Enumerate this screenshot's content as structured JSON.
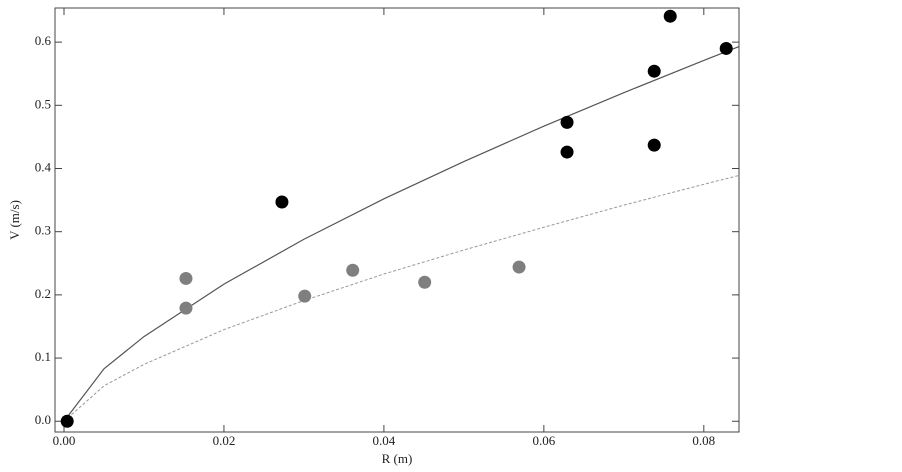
{
  "chart_data": {
    "type": "scatter",
    "xlabel": "R (m)",
    "ylabel": "V (m/s)",
    "xlim": [
      -0.001125,
      0.0844
    ],
    "ylim": [
      -0.017,
      0.654
    ],
    "xticks": [
      {
        "value": 0,
        "label": "0.00"
      },
      0.02,
      0.04,
      0.06,
      0.08
    ],
    "yticks": [
      {
        "value": 0,
        "label": "0.0"
      },
      0.1,
      0.2,
      0.3,
      0.4,
      0.5,
      0.6
    ],
    "series": [
      {
        "style": "marker",
        "color": "#000000",
        "x": [
          0.0004,
          0.02725,
          0.0629,
          0.0629,
          0.0738,
          0.0738,
          0.0758,
          0.0828
        ],
        "y": [
          0.0,
          0.347,
          0.473,
          0.426,
          0.554,
          0.437,
          0.641,
          0.59
        ]
      },
      {
        "style": "marker",
        "color": "#7f7f7f",
        "x": [
          0.01525,
          0.01525,
          0.0301,
          0.0361,
          0.0451,
          0.0569
        ],
        "y": [
          0.226,
          0.179,
          0.198,
          0.239,
          0.22,
          0.244
        ]
      },
      {
        "style": "solid",
        "color": "#555555",
        "x": [
          0,
          0.005,
          0.01,
          0.02,
          0.03,
          0.04,
          0.05,
          0.06,
          0.07,
          0.08,
          0.0844
        ],
        "y": [
          0,
          0.083,
          0.134,
          0.217,
          0.288,
          0.352,
          0.411,
          0.467,
          0.52,
          0.571,
          0.593
        ]
      },
      {
        "style": "dotted",
        "color": "#999999",
        "x": [
          0,
          0.005,
          0.01,
          0.02,
          0.03,
          0.04,
          0.05,
          0.06,
          0.07,
          0.08,
          0.0844
        ],
        "y": [
          0,
          0.056,
          0.09,
          0.145,
          0.191,
          0.233,
          0.271,
          0.307,
          0.342,
          0.375,
          0.389
        ]
      }
    ]
  }
}
